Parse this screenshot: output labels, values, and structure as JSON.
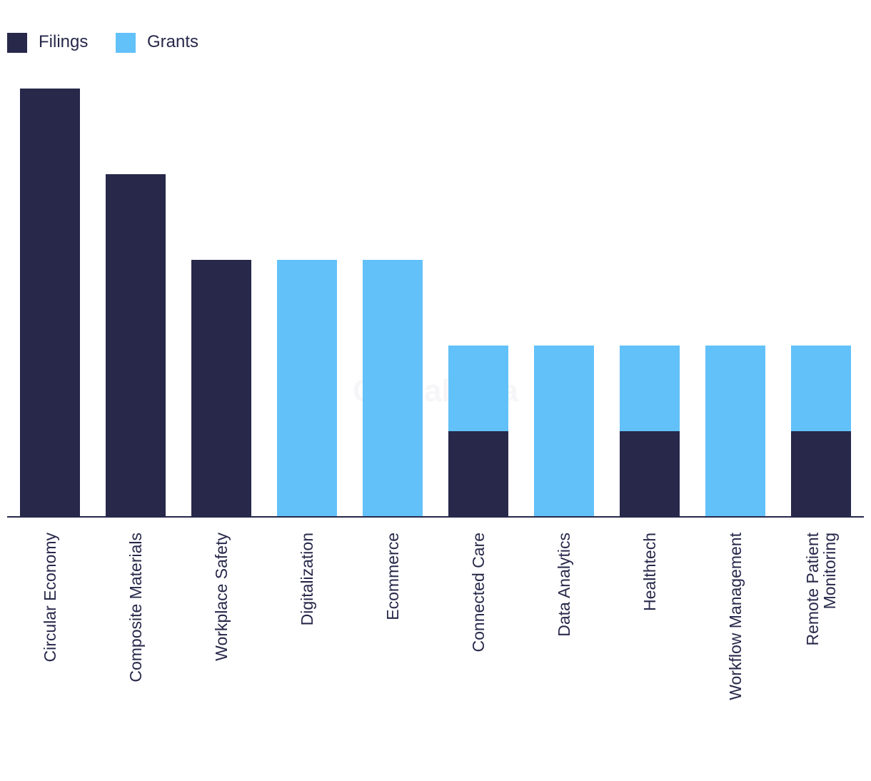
{
  "chart_data": {
    "type": "bar",
    "stacked": true,
    "categories": [
      [
        "Circular Economy"
      ],
      [
        "Composite Materials"
      ],
      [
        "Workplace Safety"
      ],
      [
        "Digitalization"
      ],
      [
        "Ecommerce"
      ],
      [
        "Connected Care"
      ],
      [
        "Data Analytics"
      ],
      [
        "Healthtech"
      ],
      [
        "Workflow Management"
      ],
      [
        "Remote Patient",
        "Monitoring"
      ]
    ],
    "series": [
      {
        "name": "Filings",
        "color": "#27284a",
        "values": [
          5,
          4,
          3,
          0,
          0,
          1,
          0,
          1,
          0,
          1
        ]
      },
      {
        "name": "Grants",
        "color": "#62c1f9",
        "values": [
          0,
          0,
          0,
          3,
          3,
          1,
          2,
          1,
          2,
          1
        ]
      }
    ],
    "ylim": [
      0,
      5
    ],
    "grid": false,
    "legend": "top-left",
    "watermark": "GlobalData"
  }
}
